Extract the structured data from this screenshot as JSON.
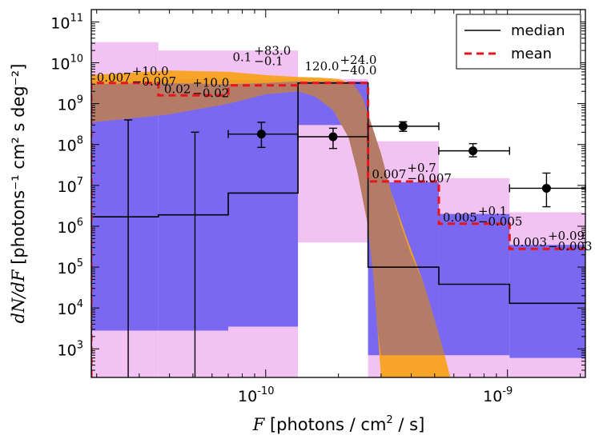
{
  "chart_data": {
    "type": "step",
    "title": "",
    "xlabel": {
      "var": "F",
      "rest": "[photons / cm",
      "sup": "2",
      "tail": " / s]"
    },
    "ylabel": {
      "var": "dN/dF",
      "text": "[photons⁻¹ cm² s deg⁻²]"
    },
    "xscale": "log",
    "yscale": "log",
    "xlim": [
      1.9e-11,
      2.1e-09
    ],
    "ylim": [
      200,
      200000000000.0
    ],
    "x_tick_labels": [
      {
        "value": 1e-10,
        "base": "10",
        "exp": "-10"
      },
      {
        "value": 1e-09,
        "base": "10",
        "exp": "-9"
      }
    ],
    "y_tick_labels": [
      {
        "value": 1000.0,
        "base": "10",
        "exp": "3"
      },
      {
        "value": 10000.0,
        "base": "10",
        "exp": "4"
      },
      {
        "value": 100000.0,
        "base": "10",
        "exp": "5"
      },
      {
        "value": 1000000.0,
        "base": "10",
        "exp": "6"
      },
      {
        "value": 10000000.0,
        "base": "10",
        "exp": "7"
      },
      {
        "value": 100000000.0,
        "base": "10",
        "exp": "8"
      },
      {
        "value": 1000000000.0,
        "base": "10",
        "exp": "9"
      },
      {
        "value": 10000000000.0,
        "base": "10",
        "exp": "10"
      },
      {
        "value": 100000000000.0,
        "base": "10",
        "exp": "11"
      }
    ],
    "bin_edges": [
      1.9e-11,
      3.6e-11,
      7e-11,
      1.36e-10,
      2.65e-10,
      5.2e-10,
      1.02e-09,
      2.1e-09
    ],
    "bands_outer": [
      {
        "low": 200,
        "high": 32000000000.0
      },
      {
        "low": 200,
        "high": 20000000000.0
      },
      {
        "low": 200,
        "high": 20000000000.0
      },
      {
        "low": 400000.0,
        "high": 4000000000.0
      },
      {
        "low": 200,
        "high": 120000000.0
      },
      {
        "low": 200,
        "high": 15000000.0
      },
      {
        "low": 200,
        "high": 2200000.0
      }
    ],
    "bands_inner": [
      {
        "low": 2800.0,
        "high": 3500000000.0
      },
      {
        "low": 2800.0,
        "high": 4000000000.0
      },
      {
        "low": 3500.0,
        "high": 3800000000.0
      },
      {
        "low": 300000000.0,
        "high": 3500000000.0
      },
      {
        "low": 700,
        "high": 12000000.0
      },
      {
        "low": 700,
        "high": 2000000.0
      },
      {
        "low": 600,
        "high": 350000.0
      }
    ],
    "series": [
      {
        "name": "median",
        "style": "solid",
        "color": "#000000",
        "values": [
          1700000.0,
          1900000.0,
          6500000.0,
          3200000000.0,
          100000.0,
          38000.0,
          13000.0
        ]
      },
      {
        "name": "mean",
        "style": "dashed",
        "color": "#e8141c",
        "values": [
          3200000000.0,
          1600000000.0,
          2800000000.0,
          3200000000.0,
          12500000.0,
          1150000.0,
          280000.0
        ]
      }
    ],
    "orange_band": {
      "upper": [
        [
          1.9e-11,
          5000000000.0
        ],
        [
          4e-11,
          6500000000.0
        ],
        [
          7e-11,
          6000000000.0
        ],
        [
          1e-10,
          5000000000.0
        ],
        [
          1.36e-10,
          4500000000.0
        ],
        [
          1.7e-10,
          4300000000.0
        ],
        [
          2e-10,
          4000000000.0
        ],
        [
          2.3e-10,
          3000000000.0
        ],
        [
          2.5e-10,
          1500000000.0
        ],
        [
          2.7e-10,
          400000000.0
        ],
        [
          3e-10,
          60000000.0
        ],
        [
          3.3e-10,
          7000000.0
        ],
        [
          3.8e-10,
          600000.0
        ],
        [
          4.5e-10,
          40000.0
        ],
        [
          5e-10,
          5000.0
        ],
        [
          5.5e-10,
          700
        ],
        [
          5.8e-10,
          200
        ]
      ],
      "lower": [
        [
          1.9e-11,
          350000000.0
        ],
        [
          4e-11,
          550000000.0
        ],
        [
          7e-11,
          1000000000.0
        ],
        [
          1e-10,
          1700000000.0
        ],
        [
          1.36e-10,
          2000000000.0
        ],
        [
          1.6e-10,
          1500000000.0
        ],
        [
          1.9e-10,
          700000000.0
        ],
        [
          2.2e-10,
          150000000.0
        ],
        [
          2.4e-10,
          20000000.0
        ],
        [
          2.65e-10,
          1000000.0
        ],
        [
          2.8e-10,
          50000.0
        ],
        [
          2.9e-10,
          3000.0
        ],
        [
          3e-10,
          200
        ]
      ]
    },
    "brown_band": {
      "upper": [
        [
          1.9e-11,
          3000000000.0
        ],
        [
          3.6e-11,
          3200000000.0
        ],
        [
          7e-11,
          3000000000.0
        ],
        [
          1e-10,
          3200000000.0
        ],
        [
          1.36e-10,
          3500000000.0
        ],
        [
          2e-10,
          3500000000.0
        ],
        [
          2.3e-10,
          3000000000.0
        ],
        [
          2.5e-10,
          1500000000.0
        ],
        [
          2.7e-10,
          400000000.0
        ],
        [
          3e-10,
          60000000.0
        ],
        [
          3.3e-10,
          7000000.0
        ],
        [
          3.6e-10,
          1200000.0
        ],
        [
          4e-10,
          200000.0
        ],
        [
          4.5e-10,
          40000.0
        ],
        [
          5e-10,
          5000.0
        ],
        [
          5.5e-10,
          700
        ]
      ],
      "lower": [
        [
          5.5e-10,
          700
        ],
        [
          5e-10,
          700
        ],
        [
          4e-10,
          700
        ],
        [
          3e-10,
          700
        ],
        [
          2.9e-10,
          3000.0
        ],
        [
          2.8e-10,
          50000.0
        ],
        [
          2.65e-10,
          1000000.0
        ],
        [
          2.4e-10,
          20000000.0
        ],
        [
          2.2e-10,
          150000000.0
        ],
        [
          1.9e-10,
          700000000.0
        ],
        [
          1.6e-10,
          1500000000.0
        ],
        [
          1.36e-10,
          2000000000.0
        ],
        [
          1e-10,
          1700000000.0
        ],
        [
          7e-11,
          1000000000.0
        ],
        [
          4e-11,
          550000000.0
        ],
        [
          1.9e-11,
          350000000.0
        ]
      ]
    },
    "points": [
      {
        "x": 2.7e-11,
        "y": 200,
        "ylo": 200,
        "yhi": 400000000.0,
        "xlo": null,
        "xhi": null,
        "marker": false
      },
      {
        "x": 5.1e-11,
        "y": 200,
        "ylo": 200,
        "yhi": 200000000.0,
        "xlo": null,
        "xhi": null,
        "marker": false
      },
      {
        "x": 9.6e-11,
        "y": 180000000.0,
        "ylo": 85000000.0,
        "yhi": 350000000.0,
        "xlo": 7e-11,
        "xhi": 1.36e-10,
        "marker": true
      },
      {
        "x": 1.9e-10,
        "y": 155000000.0,
        "ylo": 80000000.0,
        "yhi": 250000000.0,
        "xlo": 1.36e-10,
        "xhi": 2.65e-10,
        "marker": true
      },
      {
        "x": 3.7e-10,
        "y": 280000000.0,
        "ylo": 210000000.0,
        "yhi": 360000000.0,
        "xlo": 2.65e-10,
        "xhi": 5.2e-10,
        "marker": true
      },
      {
        "x": 7.2e-10,
        "y": 70000000.0,
        "ylo": 50000000.0,
        "yhi": 105000000.0,
        "xlo": 5.2e-10,
        "xhi": 1.02e-09,
        "marker": true
      },
      {
        "x": 1.45e-09,
        "y": 8500000.0,
        "ylo": 3000000.0,
        "yhi": 20000000.0,
        "xlo": 1.02e-09,
        "xhi": 2.1e-09,
        "marker": true
      }
    ],
    "annotations": [
      {
        "x": 2e-11,
        "y": 3500000000.0,
        "main": "0.007",
        "sup": "+10.0",
        "sub": "−0.007"
      },
      {
        "x": 3.8e-11,
        "y": 1800000000.0,
        "main": "0.02",
        "sup": "+10.0",
        "sub": "−0.02"
      },
      {
        "x": 7.3e-11,
        "y": 11000000000.0,
        "main": "0.1",
        "sup": "+83.0",
        "sub": "−0.1"
      },
      {
        "x": 1.45e-10,
        "y": 6500000000.0,
        "main": "120.0",
        "sup": "+24.0",
        "sub": "−40.0"
      },
      {
        "x": 2.75e-10,
        "y": 15000000.0,
        "main": "0.007",
        "sup": "+0.7",
        "sub": "−0.007"
      },
      {
        "x": 5.4e-10,
        "y": 1300000.0,
        "main": "0.005",
        "sup": "+0.1",
        "sub": "−0.005"
      },
      {
        "x": 1.05e-09,
        "y": 320000.0,
        "main": "0.003",
        "sup": "+0.09",
        "sub": "−0.003"
      }
    ],
    "legend": {
      "position": "top-right",
      "entries": [
        "median",
        "mean"
      ]
    },
    "colors": {
      "band_outer": "#f2c2f2",
      "band_inner": "#7b68f0",
      "orange": "#f7a21e",
      "brown": "#b07a6a",
      "median": "#000000",
      "mean": "#e8141c"
    }
  }
}
